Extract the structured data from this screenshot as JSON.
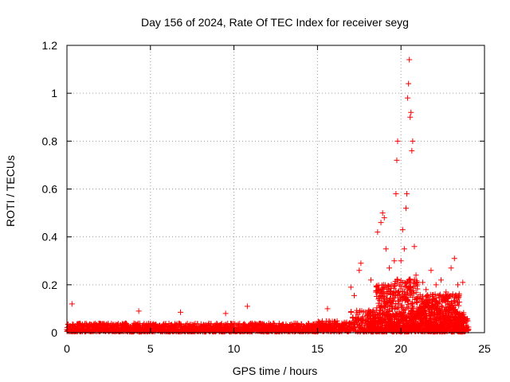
{
  "chart_data": {
    "type": "scatter",
    "title": "Day 156 of 2024, Rate Of TEC Index for receiver seyg",
    "xlabel": "GPS time / hours",
    "ylabel": "ROTI / TECUs",
    "xlim": [
      0,
      25
    ],
    "ylim": [
      0,
      1.2
    ],
    "xticks": [
      0,
      5,
      10,
      15,
      20,
      25
    ],
    "yticks": [
      0,
      0.2,
      0.4,
      0.6,
      0.8,
      1,
      1.2
    ],
    "xtick_labels": [
      "0",
      "5",
      "10",
      "15",
      "20",
      "25"
    ],
    "ytick_labels": [
      "0",
      "0.2",
      "0.4",
      "0.6",
      "0.8",
      "1",
      "1.2"
    ],
    "grid": true,
    "marker": "+",
    "series": [
      {
        "name": "ROTI",
        "color": "#ff0000",
        "points": [
          [
            0.3,
            0.12
          ],
          [
            4.3,
            0.09
          ],
          [
            6.8,
            0.085
          ],
          [
            9.5,
            0.08
          ],
          [
            10.8,
            0.11
          ],
          [
            15.6,
            0.1
          ],
          [
            17.0,
            0.19
          ],
          [
            17.2,
            0.155
          ],
          [
            17.5,
            0.26
          ],
          [
            17.6,
            0.29
          ],
          [
            18.2,
            0.22
          ],
          [
            18.6,
            0.42
          ],
          [
            18.8,
            0.46
          ],
          [
            18.9,
            0.5
          ],
          [
            19.0,
            0.48
          ],
          [
            19.1,
            0.35
          ],
          [
            19.3,
            0.27
          ],
          [
            19.6,
            0.3
          ],
          [
            19.7,
            0.58
          ],
          [
            19.75,
            0.72
          ],
          [
            19.8,
            0.8
          ],
          [
            20.0,
            0.3
          ],
          [
            20.1,
            0.43
          ],
          [
            20.2,
            0.35
          ],
          [
            20.3,
            0.52
          ],
          [
            20.35,
            0.58
          ],
          [
            20.4,
            0.98
          ],
          [
            20.45,
            1.04
          ],
          [
            20.5,
            1.14
          ],
          [
            20.55,
            0.9
          ],
          [
            20.6,
            0.92
          ],
          [
            20.65,
            0.76
          ],
          [
            20.7,
            0.8
          ],
          [
            20.8,
            0.36
          ],
          [
            20.9,
            0.24
          ],
          [
            21.3,
            0.21
          ],
          [
            21.5,
            0.18
          ],
          [
            21.8,
            0.26
          ],
          [
            22.1,
            0.2
          ],
          [
            22.4,
            0.22
          ],
          [
            22.7,
            0.17
          ],
          [
            23.0,
            0.27
          ],
          [
            23.2,
            0.31
          ],
          [
            23.4,
            0.2
          ],
          [
            23.7,
            0.21
          ],
          [
            24.0,
            0.05
          ]
        ]
      }
    ]
  }
}
